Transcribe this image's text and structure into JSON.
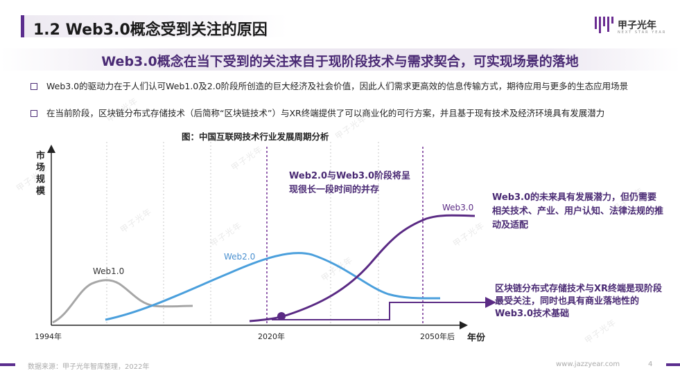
{
  "header": {
    "title": "1.2 Web3.0概念受到关注的原因",
    "logo_text": "甲子光年",
    "logo_sub": "NEXT STAR YEAR"
  },
  "subtitle": "Web3.0概念在当下受到的关注来自于现阶段技术与需求契合，可实现场景的落地",
  "bullets": [
    "Web3.0的驱动力在于人们认可Web1.0及2.0阶段所创造的巨大经济及社会价值，因此人们需求更高效的信息传输方式，期待应用与更多的生态应用场景",
    "在当前阶段，区块链分布式存储技术（后简称“区块链技术”）与XR终端提供了可以商业化的可行方案，并且基于现有技术及经济环境具有发展潜力"
  ],
  "figure": {
    "caption": "图：中国互联网技术行业发展周期分析",
    "y_label": "市场规模",
    "x_label": "年份",
    "x_ticks": [
      "1994年",
      "2020年",
      "2050年后"
    ],
    "series_labels": {
      "web1": "Web1.0",
      "web2": "Web2.0",
      "web3": "Web3.0"
    },
    "annotations": {
      "coexist": "Web2.0与Web3.0阶段将呈现很长一段时间的并存",
      "future": "Web3.0的未来具有发展潜力，但仍需要相关技术、产业、用户认知、法律法规的推动及适配",
      "basis": "区块链分布式存储技术与XR终端是现阶段最受关注，同时也具有商业落地性的Web3.0技术基础"
    }
  },
  "watermark": "甲子光年",
  "footer": {
    "source": "数据来源：甲子光年智库整理，2022年",
    "url": "www.jazzyear.com",
    "page": "4"
  },
  "colors": {
    "brand": "#5b2d8e",
    "web1": "#a6a6a6",
    "web2": "#4a9fdc",
    "web3": "#5a2a84"
  }
}
